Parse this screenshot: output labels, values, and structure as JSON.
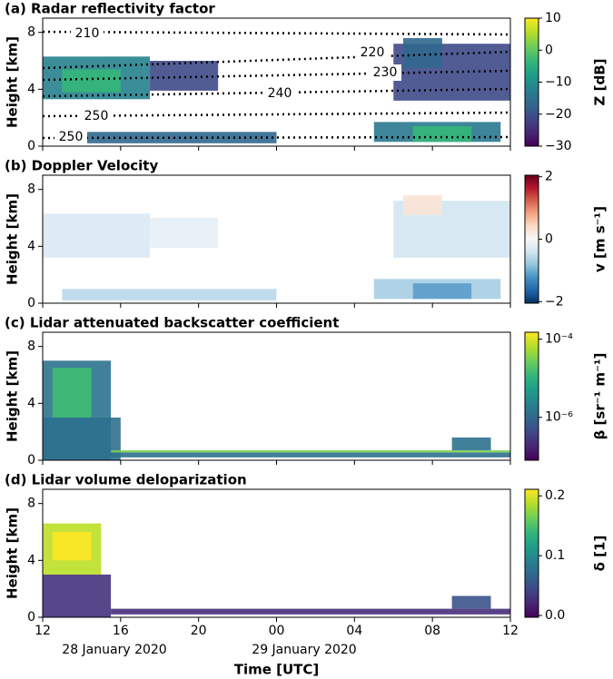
{
  "chart_data": [
    {
      "type": "heatmap",
      "title": "(a) Radar reflectivity factor",
      "ylabel": "Height [km]",
      "ylim": [
        0,
        9
      ],
      "yticks": [
        0,
        4,
        8
      ],
      "xlim": [
        12,
        36
      ],
      "xticks": [
        12,
        16,
        20,
        24,
        28,
        32,
        36
      ],
      "colorbar": {
        "label": "Z [dB]",
        "colormap": "viridis",
        "scale": "linear",
        "lim": [
          -30,
          10
        ],
        "ticks": [
          {
            "value": -30,
            "label": "−30"
          },
          {
            "value": -20,
            "label": "−20"
          },
          {
            "value": -10,
            "label": "−10"
          },
          0,
          10
        ]
      },
      "annotations": [
        "210",
        "220",
        "230",
        "240",
        "250",
        "250"
      ]
    },
    {
      "type": "heatmap",
      "title": "(b) Doppler Velocity",
      "ylabel": "Height [km]",
      "ylim": [
        0,
        9
      ],
      "yticks": [
        0,
        4,
        8
      ],
      "xlim": [
        12,
        36
      ],
      "xticks": [
        12,
        16,
        20,
        24,
        28,
        32,
        36
      ],
      "colorbar": {
        "label": "v [m s⁻¹]",
        "colormap": "RdBu_r",
        "scale": "linear",
        "lim": [
          -2.05,
          2.05
        ],
        "ticks": [
          {
            "value": -2,
            "label": "−2"
          },
          0,
          2
        ]
      }
    },
    {
      "type": "heatmap",
      "title": "(c) Lidar attenuated backscatter coefficient",
      "ylabel": "Height [km]",
      "ylim": [
        0,
        9
      ],
      "yticks": [
        0,
        4,
        8
      ],
      "xlim": [
        12,
        36
      ],
      "xticks": [
        12,
        16,
        20,
        24,
        28,
        32,
        36
      ],
      "colorbar": {
        "label": "β [sr⁻¹ m⁻¹]",
        "colormap": "viridis",
        "scale": "log",
        "lim": [
          8e-08,
          0.00015
        ],
        "ticks": [
          {
            "value": 1e-06,
            "label": "10⁻⁶"
          },
          {
            "value": 0.0001,
            "label": "10⁻⁴"
          }
        ]
      }
    },
    {
      "type": "heatmap",
      "title": "(d) Lidar volume deloparization",
      "ylabel": "Height [km]",
      "ylim": [
        0,
        9
      ],
      "yticks": [
        0,
        4,
        8
      ],
      "xlim": [
        12,
        36
      ],
      "xticks": [
        12,
        16,
        20,
        {
          "value": 24,
          "label": "00"
        },
        {
          "value": 28,
          "label": "04"
        },
        {
          "value": 32,
          "label": "08"
        },
        {
          "value": 36,
          "label": "12"
        }
      ],
      "xlabel": "Time [UTC]",
      "dates": [
        "28 January 2020",
        "29 January 2020"
      ],
      "colorbar": {
        "label": "δ [1]",
        "colormap": "viridis",
        "scale": "linear",
        "lim": [
          -0.003,
          0.211
        ],
        "ticks": [
          {
            "value": 0,
            "label": "0.0"
          },
          {
            "value": 0.1,
            "label": "0.1"
          },
          {
            "value": 0.2,
            "label": "0.2"
          }
        ]
      }
    }
  ]
}
